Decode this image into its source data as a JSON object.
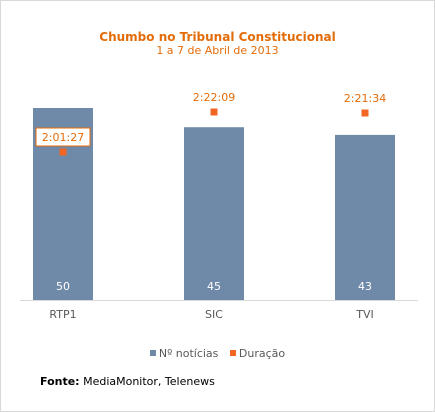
{
  "chart_data": {
    "type": "bar",
    "title": "Chumbo no Tribunal Constitucional",
    "subtitle": "1 a 7 de Abril de 2013",
    "categories": [
      "RTP1",
      "SIC",
      "TVI"
    ],
    "series": [
      {
        "name": "Nº notícias",
        "type": "bar",
        "values": [
          50,
          45,
          43
        ],
        "labels": [
          "50",
          "45",
          "43"
        ],
        "color": "#6f89a8"
      },
      {
        "name": "Duração",
        "type": "marker",
        "values_seconds": [
          7287,
          8529,
          8494
        ],
        "labels": [
          "2:01:27",
          "2:22:09",
          "2:21:34"
        ],
        "color": "#f26522"
      }
    ],
    "legend": "bottom",
    "grid": false,
    "label_color": "#e36c0a",
    "axis_text_color": "#595959"
  },
  "source": {
    "label": "Fonte:",
    "text": " MediaMonitor, Telenews"
  }
}
